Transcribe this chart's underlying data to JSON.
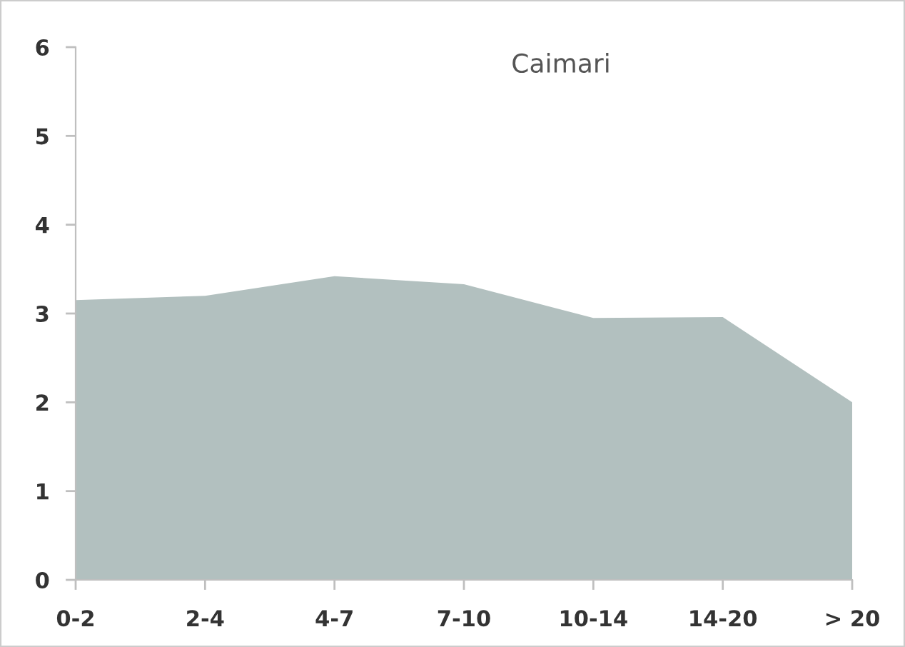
{
  "chart_data": {
    "type": "area",
    "title": "Caimari",
    "categories": [
      "0-2",
      "2-4",
      "4-7",
      "7-10",
      "10-14",
      "14-20",
      "> 20"
    ],
    "series": [
      {
        "color": "#b2c0bf",
        "values": [
          3.15,
          3.2,
          3.42,
          3.33,
          2.95,
          2.96,
          2.0
        ]
      }
    ],
    "ylim": [
      0,
      6
    ],
    "yticks": [
      0,
      1,
      2,
      3,
      4,
      5,
      6
    ],
    "grid": false
  }
}
